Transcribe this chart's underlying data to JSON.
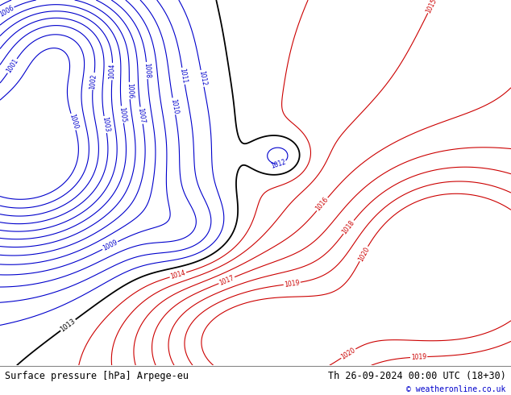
{
  "title_left": "Surface pressure [hPa] Arpege-eu",
  "title_right": "Th 26-09-2024 00:00 UTC (18+30)",
  "copyright": "© weatheronline.co.uk",
  "land_color": "#b5d9a0",
  "sea_color": "#dce9f5",
  "country_edge_color": "#000000",
  "coast_color": "#000000",
  "bottom_bg": "#ffffff",
  "text_color_left": "#000000",
  "text_color_right": "#000000",
  "copyright_color": "#0000cc",
  "figsize": [
    6.34,
    4.9
  ],
  "dpi": 100,
  "extent": [
    -10,
    30,
    30,
    58
  ],
  "blue_levels": [
    1000,
    1001,
    1002,
    1003,
    1004,
    1005,
    1006,
    1007,
    1008,
    1009,
    1010,
    1011,
    1012
  ],
  "red_levels": [
    1014,
    1015,
    1016,
    1017,
    1018,
    1019,
    1020
  ],
  "black_levels": [
    1013
  ],
  "blue_color": "#0000cc",
  "red_color": "#cc0000",
  "black_color": "#000000"
}
